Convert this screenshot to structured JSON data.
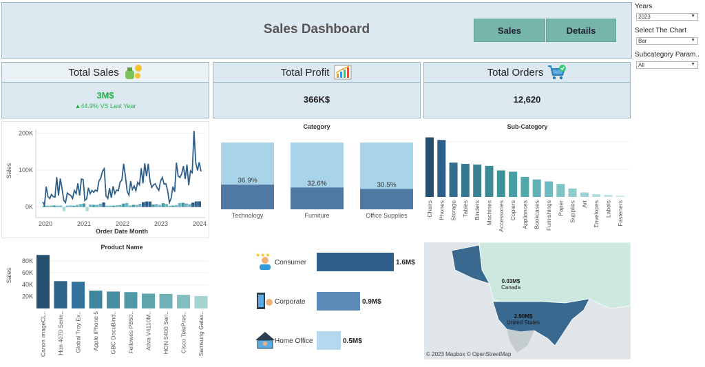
{
  "header": {
    "title": "Sales Dashboard",
    "nav": [
      {
        "label": "Sales"
      },
      {
        "label": "Details"
      }
    ]
  },
  "filters": {
    "years_label": "Years",
    "years_value": "2023",
    "chart_label": "Select The Chart",
    "chart_value": "Bar",
    "subcat_label": "Subcategory Param..",
    "subcat_value": "All"
  },
  "kpis": {
    "sales": {
      "label": "Total Sales",
      "value": "3M$",
      "delta": "▲44.9% VS Last Year",
      "icon": "money-bag-icon"
    },
    "profit": {
      "label": "Total Profit",
      "value": "366K$",
      "icon": "growth-chart-icon"
    },
    "orders": {
      "label": "Total Orders",
      "value": "12,620",
      "icon": "shopping-cart-icon"
    }
  },
  "colors": {
    "dark": "#2d5f8a",
    "mid": "#4a88ab",
    "teal": "#3f9aa6",
    "light": "#a8d3e8",
    "green": "#26b04a",
    "panel_bg": "#dde9f0"
  },
  "chart_data": [
    {
      "type": "line",
      "xlabel": "Order Date Month",
      "ylabel": "Sales",
      "ylim": [
        -10000,
        210000
      ],
      "yticks": [
        "0K",
        "100K",
        "200K"
      ],
      "xticks": [
        "2020",
        "2021",
        "2022",
        "2023",
        "2024"
      ],
      "series": [
        {
          "values": [
            14000,
            4500,
            55000,
            28000,
            23000,
            34000,
            28000,
            27000,
            81000,
            31000,
            77000,
            50000,
            18000,
            12000,
            38000,
            34000,
            31000,
            23000,
            45000,
            36000,
            64000,
            31000,
            76000,
            74000,
            18000,
            22000,
            52000,
            36000,
            45000,
            40000,
            46000,
            43000,
            71000,
            78000,
            97000,
            104000,
            30000,
            23000,
            51000,
            25000,
            56000,
            36000,
            46000,
            44000,
            67000,
            73000,
            117000,
            84000,
            43000,
            32000,
            70000,
            47000,
            57000,
            44000,
            67000,
            60000,
            105000,
            64000,
            118000,
            83000,
            117000,
            70000,
            53000,
            60000,
            63000,
            52000,
            45000,
            70000,
            80000,
            62000,
            63000,
            45000,
            12000,
            24000,
            55000,
            41000,
            120000,
            84000,
            80000,
            90000,
            111000,
            76000,
            115000,
            59000,
            98000,
            93000,
            206000,
            120000,
            99000,
            121000,
            96000
          ]
        }
      ]
    },
    {
      "type": "bar",
      "title": "Category",
      "categories": [
        "Technology",
        "Furniture",
        "Office Supplies"
      ],
      "values": [
        36.9,
        32.6,
        30.5
      ],
      "labels": [
        "36.9%",
        "32.6%",
        "30.5%"
      ]
    },
    {
      "type": "bar",
      "title": "Sub-Category",
      "categories": [
        "Chairs",
        "Phones",
        "Storage",
        "Tables",
        "Binders",
        "Machines",
        "Accessories",
        "Copiers",
        "Appliances",
        "Bookcases",
        "Furnishings",
        "Paper",
        "Supplies",
        "Art",
        "Envelopes",
        "Labels",
        "Fasteners"
      ],
      "values": [
        92,
        88,
        53,
        51,
        50,
        48,
        41,
        39,
        31,
        27,
        24,
        20,
        13,
        7,
        4,
        3,
        2
      ]
    },
    {
      "type": "bar",
      "title": "Product Name",
      "ylabel": "Sales",
      "yticks": [
        "20K",
        "40K",
        "60K",
        "80K"
      ],
      "categories": [
        "Canon imageCL..",
        "Hon 4070 Serie..",
        "Global Troy Ex..",
        "Apple iPhone 5",
        "GBC DocuBind..",
        "Fellowes PB50..",
        "Ativa V4110M..",
        "HON 5400 Seri..",
        "Cisco TelePres..",
        "Samsung Galax.."
      ],
      "values": [
        90000,
        46000,
        45000,
        30000,
        28500,
        27500,
        25000,
        24500,
        23000,
        21000
      ]
    },
    {
      "type": "bar",
      "orientation": "horizontal",
      "categories": [
        "Consumer",
        "Corporate",
        "Home Office"
      ],
      "values": [
        1.6,
        0.9,
        0.5
      ],
      "labels": [
        "1.6M$",
        "0.9M$",
        "0.5M$"
      ]
    }
  ],
  "map": {
    "regions": [
      {
        "name": "Canada",
        "value": "0.03M$"
      },
      {
        "name": "United States",
        "value": "2.90M$"
      }
    ],
    "attribution": "© 2023 Mapbox © OpenStreetMap"
  }
}
